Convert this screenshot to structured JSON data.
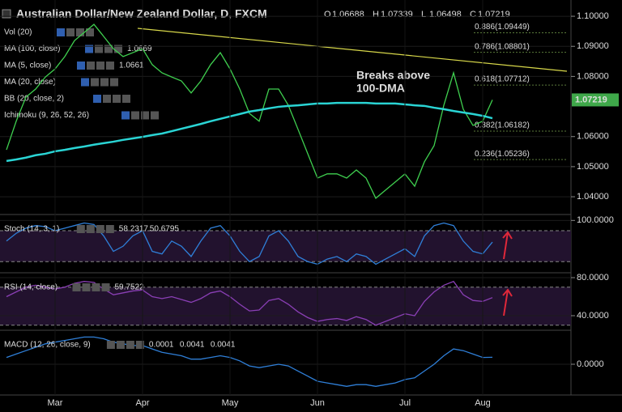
{
  "header": {
    "title": "Australian Dollar/New Zealand Dollar, D, FXCM",
    "ohlc": [
      "O",
      "1.06688",
      "H",
      "1.07339",
      "L",
      "1.06498",
      "C",
      "1.07219"
    ],
    "indicators": [
      {
        "name": "Vol (20)"
      },
      {
        "name": "MA (100, close)",
        "value": "1.0669"
      },
      {
        "name": "MA (5, close)",
        "value": "1.0661"
      },
      {
        "name": "MA (20, close)"
      },
      {
        "name": "BB (20, close, 2)"
      },
      {
        "name": "Ichimoku (9, 26, 52, 26)"
      }
    ]
  },
  "chart_data": [
    {
      "type": "line",
      "panel": "price",
      "annotation": [
        "Breaks above",
        "100-DMA"
      ],
      "levels": [
        {
          "value": 1.09449,
          "label": "0.886(1.09449)"
        },
        {
          "value": 1.08801,
          "label": "0.786(1.08801)"
        },
        {
          "value": 1.07712,
          "label": "0.618(1.07712)"
        },
        {
          "value": 1.06182,
          "label": "0.382(1.06182)"
        },
        {
          "value": 1.05236,
          "label": "0.236(1.05236)"
        }
      ],
      "last": 1.07219,
      "ylim": [
        1.0341,
        1.1054
      ],
      "yticks": [
        {
          "value": 1.1,
          "label": "1.10000"
        },
        {
          "value": 1.09,
          "label": "1.09000"
        },
        {
          "value": 1.08,
          "label": "1.08000"
        },
        {
          "value": 1.06,
          "label": "1.06000"
        },
        {
          "value": 1.05,
          "label": "1.05000"
        },
        {
          "value": 1.04,
          "label": "1.04000"
        }
      ],
      "series": [
        {
          "name": "Close",
          "color": "#3fcf4f",
          "values": [
            1.0556,
            1.0651,
            1.0731,
            1.0758,
            1.0798,
            1.0825,
            1.0866,
            1.0919,
            1.0946,
            1.0973,
            1.0933,
            1.0892,
            1.0866,
            1.0879,
            1.0892,
            1.0839,
            1.0812,
            1.0798,
            1.0785,
            1.0745,
            1.0785,
            1.0839,
            1.0879,
            1.0825,
            1.0758,
            1.0677,
            1.0651,
            1.0758,
            1.0758,
            1.0704,
            1.0624,
            1.0543,
            1.0462,
            1.0476,
            1.0476,
            1.0462,
            1.0489,
            1.0462,
            1.0395,
            1.0422,
            1.0449,
            1.0476,
            1.0435,
            1.0516,
            1.057,
            1.0704,
            1.0812,
            1.0691,
            1.0637,
            1.0651,
            1.0722
          ]
        },
        {
          "name": "MA (100, close)",
          "color": "#2ad4d4",
          "values": [
            1.0519,
            1.0524,
            1.053,
            1.0538,
            1.0543,
            1.0551,
            1.0556,
            1.0562,
            1.0567,
            1.0573,
            1.0578,
            1.0583,
            1.0589,
            1.0594,
            1.0599,
            1.0605,
            1.061,
            1.0618,
            1.0626,
            1.0634,
            1.0642,
            1.0651,
            1.0659,
            1.0667,
            1.0675,
            1.0683,
            1.0688,
            1.0694,
            1.0699,
            1.0702,
            1.0704,
            1.0707,
            1.071,
            1.071,
            1.0712,
            1.0712,
            1.0712,
            1.0712,
            1.071,
            1.071,
            1.071,
            1.0707,
            1.0704,
            1.0702,
            1.0696,
            1.0691,
            1.0685,
            1.068,
            1.0675,
            1.0669,
            1.0661
          ]
        }
      ]
    },
    {
      "type": "line",
      "panel": "stoch",
      "name": "Stoch (14, 3, 1)",
      "readout": [
        "58.2317",
        "50.6795"
      ],
      "ylim": [
        -1.6,
        111.5
      ],
      "yticks": [
        {
          "value": 100,
          "label": "100.0000"
        }
      ],
      "bands": [
        80,
        20
      ],
      "series": [
        {
          "name": "%K",
          "color": "#2f7fd8",
          "values": [
            60,
            75,
            85,
            90,
            88,
            80,
            85,
            90,
            95,
            92,
            70,
            40,
            50,
            70,
            80,
            40,
            35,
            60,
            50,
            30,
            60,
            85,
            90,
            70,
            40,
            20,
            30,
            70,
            80,
            60,
            30,
            20,
            15,
            25,
            30,
            20,
            35,
            30,
            15,
            25,
            35,
            45,
            30,
            70,
            90,
            95,
            90,
            60,
            40,
            35,
            58
          ]
        }
      ]
    },
    {
      "type": "line",
      "panel": "rsi",
      "name": "RSI (14, close)",
      "readout": [
        "59.7522"
      ],
      "ylim": [
        24.7,
        85.1
      ],
      "yticks": [
        {
          "value": 80,
          "label": "80.0000"
        },
        {
          "value": 40,
          "label": "40.0000"
        }
      ],
      "bands": [
        70,
        30
      ],
      "series": [
        {
          "name": "RSI",
          "color": "#8a3fb5",
          "values": [
            60,
            65,
            70,
            72,
            70,
            68,
            70,
            74,
            76,
            75,
            68,
            62,
            64,
            66,
            67,
            60,
            58,
            60,
            57,
            54,
            58,
            64,
            66,
            60,
            52,
            45,
            46,
            56,
            58,
            52,
            44,
            38,
            34,
            36,
            37,
            35,
            39,
            36,
            30,
            34,
            38,
            42,
            40,
            55,
            65,
            72,
            76,
            62,
            56,
            55,
            59
          ]
        }
      ]
    },
    {
      "type": "line",
      "panel": "macd",
      "name": "MACD (12, 26, close, 9)",
      "readout": [
        "0.0001",
        "0.0041",
        "0.0041"
      ],
      "ylim": [
        -0.0181,
        0.02
      ],
      "yticks": [
        {
          "value": 0,
          "label": "0.0000"
        }
      ],
      "categories": [
        null,
        null,
        null,
        null,
        null,
        "Mar",
        null,
        null,
        null,
        null,
        null,
        null,
        null,
        null,
        "Apr",
        null,
        null,
        null,
        null,
        null,
        null,
        null,
        null,
        "May",
        null,
        null,
        null,
        null,
        null,
        null,
        null,
        null,
        "Jun",
        null,
        null,
        null,
        null,
        null,
        null,
        null,
        null,
        "Jul",
        null,
        null,
        null,
        null,
        null,
        null,
        null,
        "Aug",
        null
      ],
      "series": [
        {
          "name": "MACD",
          "color": "#2f7fd8",
          "values": [
            0.004,
            0.006,
            0.008,
            0.01,
            0.012,
            0.013,
            0.014,
            0.015,
            0.016,
            0.016,
            0.015,
            0.013,
            0.012,
            0.011,
            0.011,
            0.009,
            0.007,
            0.006,
            0.005,
            0.003,
            0.003,
            0.004,
            0.005,
            0.004,
            0.002,
            -0.001,
            -0.002,
            -0.001,
            0,
            -0.001,
            -0.004,
            -0.007,
            -0.01,
            -0.011,
            -0.012,
            -0.013,
            -0.012,
            -0.012,
            -0.013,
            -0.012,
            -0.011,
            -0.009,
            -0.008,
            -0.004,
            0,
            0.005,
            0.009,
            0.008,
            0.006,
            0.004,
            0.0041
          ]
        }
      ]
    }
  ]
}
